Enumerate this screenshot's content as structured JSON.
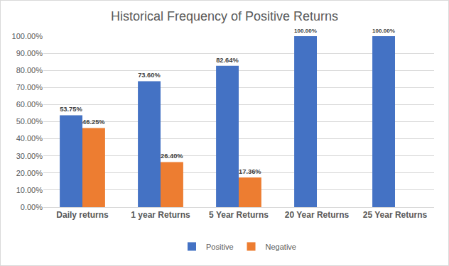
{
  "chart_data": {
    "type": "bar",
    "title": "Historical Frequency of Positive Returns",
    "categories": [
      "Daily returns",
      "1 year Returns",
      "5 Year Returns",
      "20 Year Returns",
      "25 Year Returns"
    ],
    "series": [
      {
        "name": "Positive",
        "color": "#4472c4",
        "values": [
          53.75,
          73.6,
          82.64,
          100,
          100
        ],
        "value_labels": [
          "53.75%",
          "73.60%",
          "82.64%",
          "100.00%",
          "100.00%"
        ]
      },
      {
        "name": "Negative",
        "color": "#ed7d31",
        "values": [
          46.25,
          26.4,
          17.36,
          null,
          null
        ],
        "value_labels": [
          "46.25%",
          "26.40%",
          "17.36%",
          null,
          null
        ]
      }
    ],
    "ylim": [
      0,
      100
    ],
    "yticks": [
      {
        "value": 0,
        "label": "0.00%"
      },
      {
        "value": 10,
        "label": "10.00%"
      },
      {
        "value": 20,
        "label": "20.00%"
      },
      {
        "value": 30,
        "label": "30.00%"
      },
      {
        "value": 40,
        "label": "40.00%"
      },
      {
        "value": 50,
        "label": "50.00%"
      },
      {
        "value": 60,
        "label": "60.00%"
      },
      {
        "value": 70,
        "label": "70.00%"
      },
      {
        "value": 80,
        "label": "80.00%"
      },
      {
        "value": 90,
        "label": "90.00%"
      },
      {
        "value": 100,
        "label": "100.00%"
      }
    ],
    "grid": true,
    "legend": "bottom",
    "data_labels": true
  }
}
